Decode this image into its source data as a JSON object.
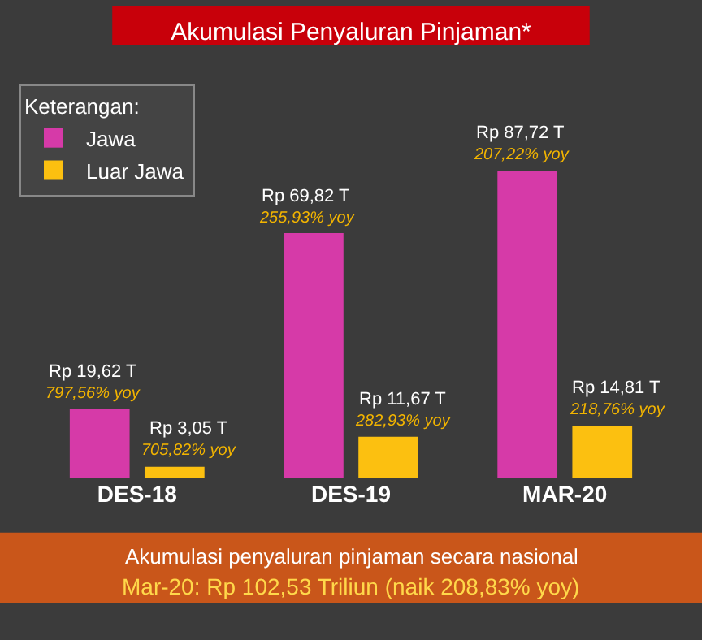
{
  "chart_data": {
    "type": "bar",
    "title": "Akumulasi Penyaluran Pinjaman*",
    "legend_title": "Keterangan:",
    "legend": "top left",
    "categories": [
      "DES-18",
      "DES-19",
      "MAR-20"
    ],
    "series": [
      {
        "name": "Jawa",
        "color": "#d63aa8",
        "values": [
          19.62,
          69.82,
          87.72
        ],
        "value_labels": [
          "Rp 19,62 T",
          "Rp 69,82 T",
          "Rp 87,72 T"
        ]
      },
      {
        "name": "Luar Jawa",
        "color": "#fcc010",
        "values": [
          3.05,
          11.67,
          14.81
        ],
        "value_labels": [
          "Rp 3,05 T",
          "Rp 11,67 T",
          "Rp 14,81 T"
        ]
      }
    ],
    "annotations": [
      {
        "text": "797,56% yoy",
        "x": "DES-18",
        "y": 19.62
      },
      {
        "text": "255,93% yoy",
        "x": "DES-19",
        "y": 69.82
      },
      {
        "text": "207,22% yoy",
        "x": "MAR-20",
        "y": 87.72
      },
      {
        "text": "705,82% yoy",
        "x": "DES-18",
        "y": 3.05
      },
      {
        "text": "282,93% yoy",
        "x": "DES-19",
        "y": 11.67
      },
      {
        "text": "218,76% yoy",
        "x": "MAR-20",
        "y": 14.81
      },
      "Akumulasi penyaluran pinjaman secara nasional",
      "Mar-20: Rp 102,53 Triliun (naik 208,83% yoy)"
    ]
  }
}
